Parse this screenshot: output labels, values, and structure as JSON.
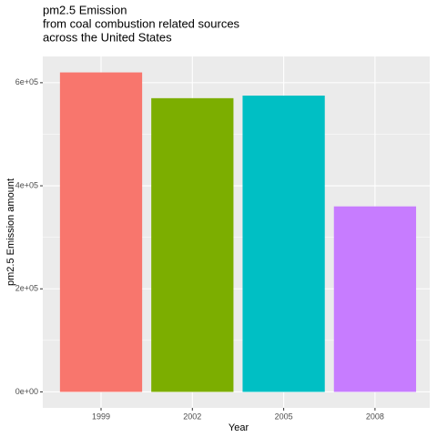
{
  "chart_data": {
    "type": "bar",
    "title": [
      "pm2.5 Emission",
      "from coal combustion related sources",
      "across the United States"
    ],
    "x_label": "Year",
    "y_label": "pm2.5 Emission amount",
    "categories": [
      "1999",
      "2002",
      "2005",
      "2008"
    ],
    "values": [
      620000,
      570000,
      575000,
      360000
    ],
    "colors": [
      "#F8766D",
      "#7CAE00",
      "#00BFC4",
      "#C77CFF"
    ],
    "ylim": [
      -31000,
      651000
    ],
    "yticks": [
      {
        "value": 0,
        "label": "0e+00"
      },
      {
        "value": 200000,
        "label": "2e+05"
      },
      {
        "value": 400000,
        "label": "4e+05"
      },
      {
        "value": 600000,
        "label": "6e+05"
      }
    ],
    "grid": true
  }
}
